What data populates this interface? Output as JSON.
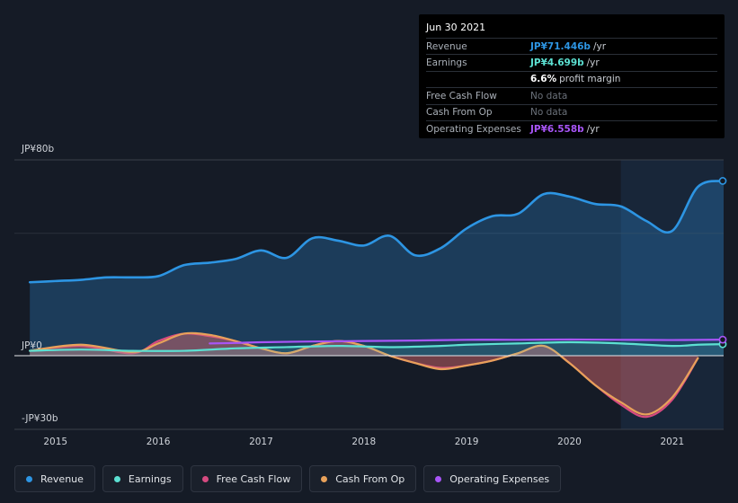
{
  "tooltip": {
    "date": "Jun 30 2021",
    "rows": [
      {
        "label": "Revenue",
        "value": "JP¥71.446b",
        "unit": "/yr",
        "color": "#2d95e3"
      },
      {
        "label": "Earnings",
        "value": "JP¥4.699b",
        "unit": "/yr",
        "color": "#5ce0d2"
      },
      {
        "label": "",
        "value": "6.6%",
        "unit": "profit margin",
        "color": "#ffffff"
      },
      {
        "label": "Free Cash Flow",
        "value": "No data",
        "unit": "",
        "color": "#6b717a"
      },
      {
        "label": "Cash From Op",
        "value": "No data",
        "unit": "",
        "color": "#6b717a"
      },
      {
        "label": "Operating Expenses",
        "value": "JP¥6.558b",
        "unit": "/yr",
        "color": "#a855f7"
      }
    ]
  },
  "legend": [
    {
      "label": "Revenue",
      "color": "#2d95e3"
    },
    {
      "label": "Earnings",
      "color": "#5ce0d2"
    },
    {
      "label": "Free Cash Flow",
      "color": "#d64a80"
    },
    {
      "label": "Cash From Op",
      "color": "#e8a15a"
    },
    {
      "label": "Operating Expenses",
      "color": "#a855f7"
    }
  ],
  "chart_data": {
    "type": "area",
    "title": "",
    "ylim": [
      -30,
      80
    ],
    "y_tick_labels": [
      "JP¥80b",
      "JP¥0",
      "-JP¥30b"
    ],
    "y_tick_values": [
      80,
      0,
      -30
    ],
    "x_tick_labels": [
      "2015",
      "2016",
      "2017",
      "2018",
      "2019",
      "2020",
      "2021"
    ],
    "x_tick_values": [
      2015,
      2016,
      2017,
      2018,
      2019,
      2020,
      2021
    ],
    "xlim": [
      2014.6,
      2021.5
    ],
    "highlight_start": 2020.5,
    "series": [
      {
        "name": "Revenue",
        "color": "#2d95e3",
        "x": [
          2014.75,
          2015.0,
          2015.25,
          2015.5,
          2015.75,
          2016.0,
          2016.25,
          2016.5,
          2016.75,
          2017.0,
          2017.25,
          2017.5,
          2017.75,
          2018.0,
          2018.25,
          2018.5,
          2018.75,
          2019.0,
          2019.25,
          2019.5,
          2019.75,
          2020.0,
          2020.25,
          2020.5,
          2020.75,
          2021.0,
          2021.25,
          2021.5
        ],
        "values": [
          30,
          30.5,
          31,
          32,
          32,
          32.5,
          37,
          38,
          39.5,
          43,
          40,
          48,
          47,
          45,
          49,
          41,
          44,
          52,
          57,
          58,
          66,
          65,
          62,
          61,
          55,
          51,
          69,
          71.4
        ]
      },
      {
        "name": "Earnings",
        "color": "#5ce0d2",
        "x": [
          2014.75,
          2015.25,
          2015.75,
          2016.25,
          2016.75,
          2017.25,
          2017.75,
          2018.25,
          2018.75,
          2019.0,
          2019.5,
          2020.0,
          2020.5,
          2021.0,
          2021.25,
          2021.5
        ],
        "values": [
          2,
          2.5,
          2,
          2,
          3,
          3.5,
          4,
          3.5,
          4,
          4.5,
          5,
          5.5,
          5,
          4,
          4.5,
          4.7
        ]
      },
      {
        "name": "Free Cash Flow",
        "color": "#d64a80",
        "x": [
          2014.75,
          2015.25,
          2015.75,
          2016.0,
          2016.25,
          2016.5,
          2016.75,
          2017.0,
          2017.25,
          2017.5,
          2017.75,
          2018.0,
          2018.25,
          2018.5,
          2018.75,
          2019.0,
          2019.25,
          2019.5,
          2019.75,
          2020.0,
          2020.25,
          2020.5,
          2020.75,
          2021.0,
          2021.25
        ],
        "values": [
          2,
          4,
          1,
          6,
          9,
          8,
          6,
          3,
          1,
          4,
          6,
          4,
          0,
          -3,
          -5,
          -4,
          -2,
          1,
          4,
          -3,
          -12,
          -20,
          -25,
          -18,
          -1
        ]
      },
      {
        "name": "Cash From Op",
        "color": "#e8a15a",
        "x": [
          2014.75,
          2015.25,
          2015.75,
          2016.0,
          2016.25,
          2016.5,
          2016.75,
          2017.0,
          2017.25,
          2017.5,
          2017.75,
          2018.0,
          2018.25,
          2018.5,
          2018.75,
          2019.0,
          2019.25,
          2019.5,
          2019.75,
          2020.0,
          2020.25,
          2020.5,
          2020.75,
          2021.0,
          2021.25
        ],
        "values": [
          2,
          4.5,
          1.5,
          5,
          9,
          8.5,
          6,
          3,
          1,
          4,
          6,
          4,
          0,
          -3,
          -5.5,
          -4,
          -2,
          1,
          4,
          -3,
          -12,
          -19,
          -24,
          -17,
          -1
        ]
      },
      {
        "name": "Operating Expenses",
        "color": "#a855f7",
        "x": [
          2016.5,
          2016.75,
          2017.0,
          2017.5,
          2018.0,
          2018.5,
          2019.0,
          2019.5,
          2020.0,
          2020.5,
          2021.0,
          2021.5
        ],
        "values": [
          5,
          5.2,
          5.5,
          5.8,
          6,
          6.2,
          6.5,
          6.5,
          6.6,
          6.5,
          6.4,
          6.56
        ]
      }
    ]
  }
}
